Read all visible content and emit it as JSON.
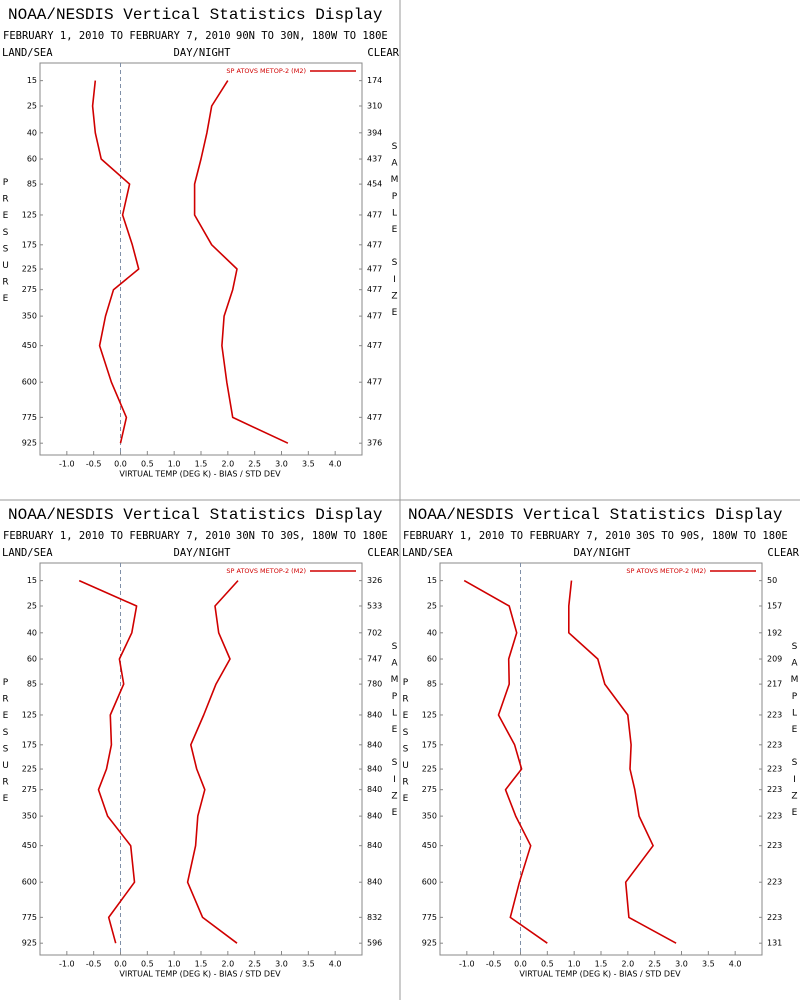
{
  "chart_data": [
    {
      "type": "line",
      "title": "NOAA/NESDIS Vertical Statistics Display",
      "date_range": "FEBRUARY 1, 2010 TO FEBRUARY 7, 2010",
      "region": "90N TO 30N, 180W TO 180E",
      "left_label": "LAND/SEA",
      "center_label": "DAY/NIGHT",
      "right_label": "CLEAR",
      "y_label": "PRESSURE",
      "y2_label": "SAMPLE SIZE",
      "x_label": "VIRTUAL TEMP (DEG K) - BIAS / STD DEV",
      "legend": "SP ATOVS METOP-2 (M2)",
      "y": [
        15,
        25,
        40,
        60,
        85,
        125,
        175,
        225,
        275,
        350,
        450,
        600,
        775,
        925
      ],
      "series": [
        {
          "color": "#d00000",
          "values": [
            -0.47,
            -0.52,
            -0.47,
            -0.36,
            0.17,
            0.04,
            0.22,
            0.34,
            -0.13,
            -0.28,
            -0.39,
            -0.17,
            0.11,
            0.0
          ]
        },
        {
          "color": "#d00000",
          "values": [
            2.0,
            1.7,
            1.61,
            1.5,
            1.38,
            1.38,
            1.7,
            2.17,
            2.09,
            1.93,
            1.89,
            1.98,
            2.09,
            3.12
          ]
        }
      ],
      "sample_size": [
        174,
        310,
        394,
        437,
        454,
        477,
        477,
        477,
        477,
        477,
        477,
        477,
        477,
        376
      ],
      "xlim": [
        -1.5,
        4.5
      ],
      "xticks": [
        {
          "value": -1,
          "label": "-1.0"
        },
        -0.5,
        {
          "value": 0,
          "label": "0.0"
        },
        0.5,
        {
          "value": 1,
          "label": "1.0"
        },
        1.5,
        {
          "value": 2,
          "label": "2.0"
        },
        2.5,
        {
          "value": 3,
          "label": "3.0"
        },
        3.5,
        {
          "value": 4,
          "label": "4.0"
        }
      ],
      "ylim": [
        10,
        1000
      ],
      "yticks": [
        15,
        25,
        40,
        60,
        85,
        125,
        175,
        225,
        275,
        350,
        450,
        600,
        775,
        925
      ],
      "y_scale": "kappa",
      "y_inverted": true,
      "zero_line": true,
      "grid": false
    },
    {
      "type": "line",
      "title": "NOAA/NESDIS Vertical Statistics Display",
      "date_range": "FEBRUARY 1, 2010 TO FEBRUARY 7, 2010",
      "region": "30N TO 30S, 180W TO 180E",
      "left_label": "LAND/SEA",
      "center_label": "DAY/NIGHT",
      "right_label": "CLEAR",
      "y_label": "PRESSURE",
      "y2_label": "SAMPLE SIZE",
      "x_label": "VIRTUAL TEMP (DEG K) - BIAS / STD DEV",
      "legend": "SP ATOVS METOP-2 (M2)",
      "y": [
        15,
        25,
        40,
        60,
        85,
        125,
        175,
        225,
        275,
        350,
        450,
        600,
        775,
        925
      ],
      "series": [
        {
          "color": "#d00000",
          "values": [
            -0.77,
            0.3,
            0.21,
            -0.02,
            0.06,
            -0.19,
            -0.17,
            -0.26,
            -0.41,
            -0.24,
            0.19,
            0.26,
            -0.22,
            -0.09
          ]
        },
        {
          "color": "#d00000",
          "values": [
            2.19,
            1.76,
            1.83,
            2.04,
            1.78,
            1.55,
            1.31,
            1.42,
            1.57,
            1.44,
            1.4,
            1.25,
            1.53,
            2.17
          ]
        }
      ],
      "sample_size": [
        326,
        533,
        702,
        747,
        780,
        840,
        840,
        840,
        840,
        840,
        840,
        840,
        832,
        596
      ],
      "xlim": [
        -1.5,
        4.5
      ],
      "xticks": [
        {
          "value": -1,
          "label": "-1.0"
        },
        -0.5,
        {
          "value": 0,
          "label": "0.0"
        },
        0.5,
        {
          "value": 1,
          "label": "1.0"
        },
        1.5,
        {
          "value": 2,
          "label": "2.0"
        },
        2.5,
        {
          "value": 3,
          "label": "3.0"
        },
        3.5,
        {
          "value": 4,
          "label": "4.0"
        }
      ],
      "ylim": [
        10,
        1000
      ],
      "yticks": [
        15,
        25,
        40,
        60,
        85,
        125,
        175,
        225,
        275,
        350,
        450,
        600,
        775,
        925
      ],
      "y_scale": "kappa",
      "y_inverted": true,
      "zero_line": true,
      "grid": false
    },
    {
      "type": "line",
      "title": "NOAA/NESDIS Vertical Statistics Display",
      "date_range": "FEBRUARY 1, 2010 TO FEBRUARY 7, 2010",
      "region": "30S TO 90S, 180W TO 180E",
      "left_label": "LAND/SEA",
      "center_label": "DAY/NIGHT",
      "right_label": "CLEAR",
      "y_label": "PRESSURE",
      "y2_label": "SAMPLE SIZE",
      "x_label": "VIRTUAL TEMP (DEG K) - BIAS / STD DEV",
      "legend": "SP ATOVS METOP-2 (M2)",
      "y": [
        15,
        25,
        40,
        60,
        85,
        125,
        175,
        225,
        275,
        350,
        450,
        600,
        775,
        925
      ],
      "series": [
        {
          "color": "#d00000",
          "values": [
            -1.05,
            -0.21,
            -0.07,
            -0.22,
            -0.21,
            -0.41,
            -0.11,
            0.02,
            -0.28,
            -0.09,
            0.19,
            -0.02,
            -0.19,
            0.5
          ]
        },
        {
          "color": "#d00000",
          "values": [
            0.95,
            0.9,
            0.9,
            1.44,
            1.57,
            2.0,
            2.06,
            2.04,
            2.13,
            2.21,
            2.47,
            1.96,
            2.02,
            2.9
          ]
        }
      ],
      "sample_size": [
        50,
        157,
        192,
        209,
        217,
        223,
        223,
        223,
        223,
        223,
        223,
        223,
        223,
        131
      ],
      "xlim": [
        -1.5,
        4.5
      ],
      "xticks": [
        {
          "value": -1,
          "label": "-1.0"
        },
        -0.5,
        {
          "value": 0,
          "label": "0.0"
        },
        0.5,
        {
          "value": 1,
          "label": "1.0"
        },
        1.5,
        {
          "value": 2,
          "label": "2.0"
        },
        2.5,
        {
          "value": 3,
          "label": "3.0"
        },
        3.5,
        {
          "value": 4,
          "label": "4.0"
        }
      ],
      "ylim": [
        10,
        1000
      ],
      "yticks": [
        15,
        25,
        40,
        60,
        85,
        125,
        175,
        225,
        275,
        350,
        450,
        600,
        775,
        925
      ],
      "y_scale": "kappa",
      "y_inverted": true,
      "zero_line": true,
      "grid": false
    }
  ]
}
